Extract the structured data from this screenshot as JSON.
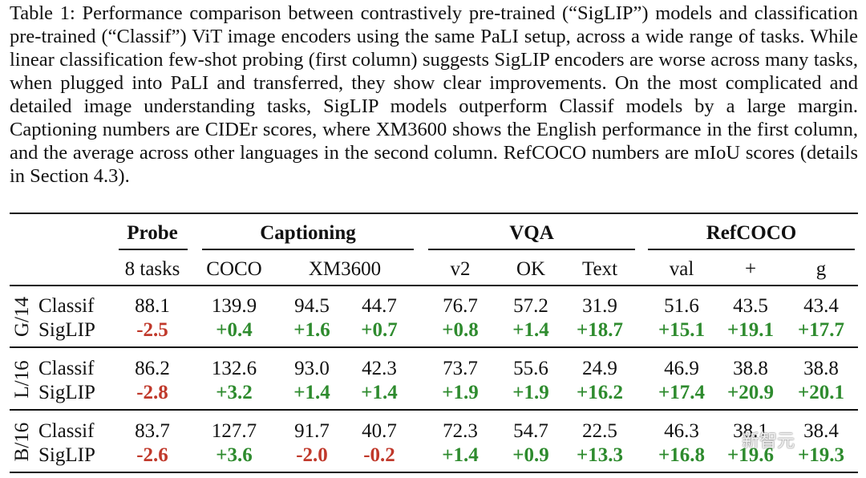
{
  "caption": "Table 1: Performance comparison between contrastively pre-trained (“SigLIP”) models and classification pre-trained (“Classif”) ViT image encoders using the same PaLI setup, across a wide range of tasks. While linear classification few-shot probing (first column) suggests SigLIP encoders are worse across many tasks, when plugged into PaLI and transferred, they show clear improvements. On the most complicated and detailed image understanding tasks, SigLIP models outperform Classif models by a large margin. Captioning numbers are CIDEr scores, where XM3600 shows the English performance in the first column, and the average across other languages in the second column. RefCOCO numbers are mIoU scores (details in Section 4.3).",
  "groups": [
    "Probe",
    "Captioning",
    "VQA",
    "RefCOCO"
  ],
  "subheaders": [
    "8 tasks",
    "COCO",
    "XM3600",
    "v2",
    "OK",
    "Text",
    "val",
    "+",
    "g"
  ],
  "blocks": [
    {
      "model": "G/14",
      "rows": [
        {
          "label": "Classif",
          "values": [
            "88.1",
            "139.9",
            "94.5",
            "44.7",
            "76.7",
            "57.2",
            "31.9",
            "51.6",
            "43.5",
            "43.4"
          ]
        },
        {
          "label": "SigLIP",
          "values": [
            "-2.5",
            "+0.4",
            "+1.6",
            "+0.7",
            "+0.8",
            "+1.4",
            "+18.7",
            "+15.1",
            "+19.1",
            "+17.7"
          ]
        }
      ]
    },
    {
      "model": "L/16",
      "rows": [
        {
          "label": "Classif",
          "values": [
            "86.2",
            "132.6",
            "93.0",
            "42.3",
            "73.7",
            "55.6",
            "24.9",
            "46.9",
            "38.8",
            "38.8"
          ]
        },
        {
          "label": "SigLIP",
          "values": [
            "-2.8",
            "+3.2",
            "+1.4",
            "+1.4",
            "+1.9",
            "+1.9",
            "+16.2",
            "+17.4",
            "+20.9",
            "+20.1"
          ]
        }
      ]
    },
    {
      "model": "B/16",
      "rows": [
        {
          "label": "Classif",
          "values": [
            "83.7",
            "127.7",
            "91.7",
            "40.7",
            "72.3",
            "54.7",
            "22.5",
            "46.3",
            "38.1",
            "38.4"
          ]
        },
        {
          "label": "SigLIP",
          "values": [
            "-2.6",
            "+3.6",
            "-2.0",
            "-0.2",
            "+1.4",
            "+0.9",
            "+13.3",
            "+16.8",
            "+19.6",
            "+19.3"
          ]
        }
      ]
    }
  ],
  "colors": {
    "negative": "#c0392b",
    "positive": "#2e8b2e"
  },
  "watermark": "新智元"
}
